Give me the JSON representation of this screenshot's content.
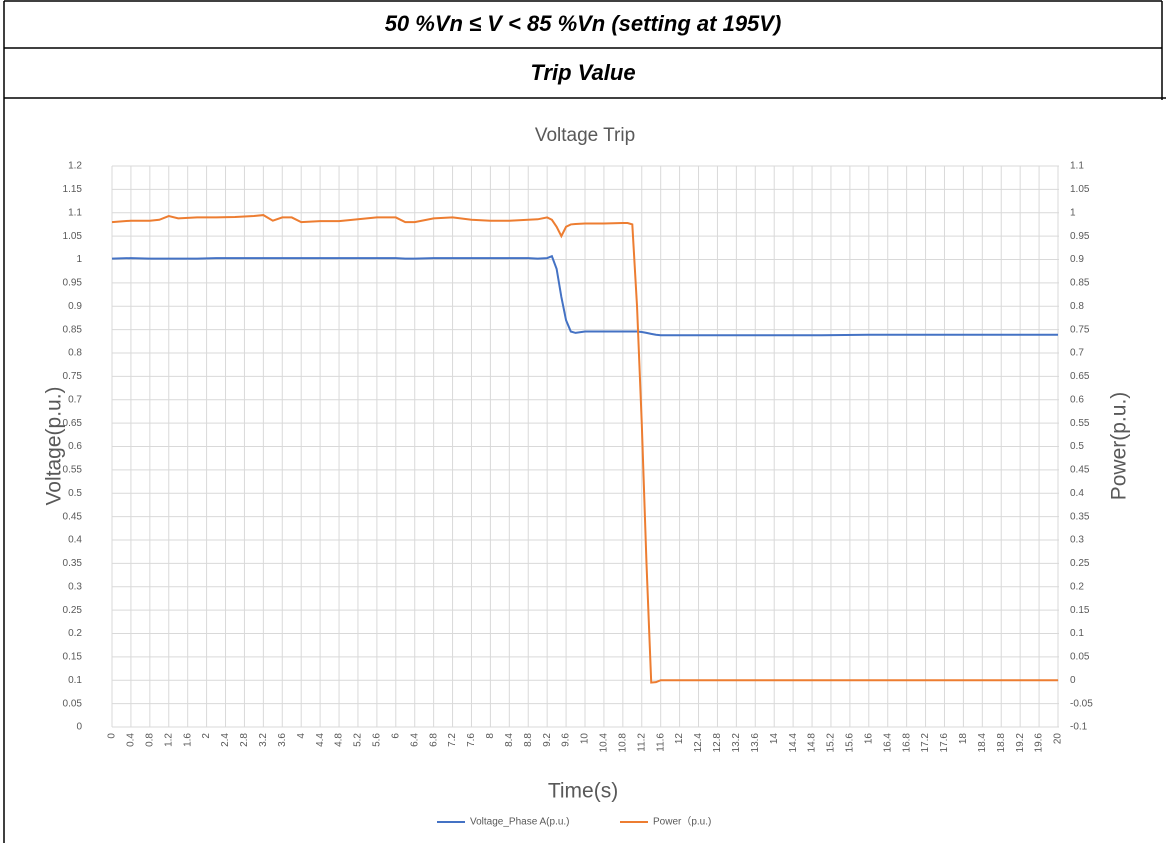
{
  "header": {
    "condition": "50 %Vn ≤ V < 85 %Vn (setting at 195V)",
    "subtitle": "Trip Value"
  },
  "chart_data": {
    "type": "line",
    "title": "Voltage Trip",
    "x_label": "Time(s)",
    "y_label": "Voltage(p.u.)",
    "y2_label": "Power(p.u.)",
    "x": [
      0,
      0.4,
      0.8,
      1.0,
      1.2,
      1.4,
      1.8,
      2.2,
      2.6,
      3.0,
      3.2,
      3.4,
      3.6,
      3.8,
      4.0,
      4.4,
      4.8,
      5.2,
      5.6,
      6.0,
      6.2,
      6.4,
      6.8,
      7.2,
      7.6,
      8.0,
      8.4,
      8.8,
      9.0,
      9.2,
      9.3,
      9.4,
      9.5,
      9.6,
      9.7,
      9.8,
      10.0,
      10.4,
      10.8,
      10.9,
      11.0,
      11.1,
      11.2,
      11.3,
      11.4,
      11.5,
      11.6,
      12,
      13,
      14,
      15,
      16,
      17,
      18,
      19,
      20
    ],
    "series": [
      {
        "name": "Voltage_Phase A(p.u.)",
        "color": "#4472c4",
        "axis": "y",
        "values": [
          1.002,
          1.003,
          1.002,
          1.002,
          1.002,
          1.002,
          1.002,
          1.003,
          1.003,
          1.003,
          1.003,
          1.003,
          1.003,
          1.003,
          1.003,
          1.003,
          1.003,
          1.003,
          1.003,
          1.003,
          1.002,
          1.002,
          1.003,
          1.003,
          1.003,
          1.003,
          1.003,
          1.003,
          1.002,
          1.003,
          1.007,
          0.98,
          0.92,
          0.87,
          0.846,
          0.843,
          0.846,
          0.846,
          0.846,
          0.846,
          0.846,
          0.846,
          0.845,
          0.843,
          0.841,
          0.839,
          0.838,
          0.838,
          0.838,
          0.838,
          0.838,
          0.839,
          0.839,
          0.839,
          0.839,
          0.839
        ]
      },
      {
        "name": "Power（p.u.)",
        "color": "#ed7d31",
        "axis": "y2",
        "values": [
          0.98,
          0.983,
          0.983,
          0.985,
          0.993,
          0.988,
          0.99,
          0.99,
          0.991,
          0.993,
          0.995,
          0.983,
          0.99,
          0.99,
          0.98,
          0.982,
          0.982,
          0.986,
          0.99,
          0.99,
          0.98,
          0.98,
          0.988,
          0.99,
          0.985,
          0.983,
          0.983,
          0.985,
          0.986,
          0.99,
          0.985,
          0.97,
          0.95,
          0.97,
          0.975,
          0.976,
          0.977,
          0.977,
          0.978,
          0.978,
          0.975,
          0.8,
          0.55,
          0.25,
          -0.005,
          -0.004,
          0,
          0,
          0,
          0,
          0,
          0,
          0,
          0,
          0,
          0
        ]
      }
    ],
    "xlim": [
      0,
      20
    ],
    "xticks": [
      0,
      0.4,
      0.8,
      1.2,
      1.6,
      2,
      2.4,
      2.8,
      3.2,
      3.6,
      4,
      4.4,
      4.8,
      5.2,
      5.6,
      6,
      6.4,
      6.8,
      7.2,
      7.6,
      8,
      8.4,
      8.8,
      9.2,
      9.6,
      10,
      10.4,
      10.8,
      11.2,
      11.6,
      12,
      12.4,
      12.8,
      13.2,
      13.6,
      14,
      14.4,
      14.8,
      15.2,
      15.6,
      16,
      16.4,
      16.8,
      17.2,
      17.6,
      18,
      18.4,
      18.8,
      19.2,
      19.6,
      20
    ],
    "ylim": [
      0,
      1.2
    ],
    "yticks": [
      0,
      0.05,
      0.1,
      0.15,
      0.2,
      0.25,
      0.3,
      0.35,
      0.4,
      0.45,
      0.5,
      0.55,
      0.6,
      0.65,
      0.7,
      0.75,
      0.8,
      0.85,
      0.9,
      0.95,
      1,
      1.05,
      1.1,
      1.15,
      1.2
    ],
    "y2lim": [
      -0.1,
      1.1
    ],
    "y2ticks": [
      -0.1,
      -0.05,
      0,
      0.05,
      0.1,
      0.15,
      0.2,
      0.25,
      0.3,
      0.35,
      0.4,
      0.45,
      0.5,
      0.55,
      0.6,
      0.65,
      0.7,
      0.75,
      0.8,
      0.85,
      0.9,
      0.95,
      1,
      1.05,
      1.1
    ],
    "grid": true,
    "legend": "bottom"
  }
}
